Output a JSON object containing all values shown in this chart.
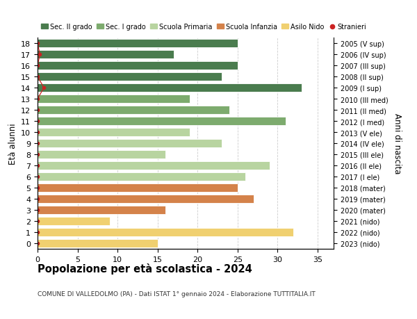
{
  "ages": [
    18,
    17,
    16,
    15,
    14,
    13,
    12,
    11,
    10,
    9,
    8,
    7,
    6,
    5,
    4,
    3,
    2,
    1,
    0
  ],
  "years": [
    "2005 (V sup)",
    "2006 (IV sup)",
    "2007 (III sup)",
    "2008 (II sup)",
    "2009 (I sup)",
    "2010 (III med)",
    "2011 (II med)",
    "2012 (I med)",
    "2013 (V ele)",
    "2014 (IV ele)",
    "2015 (III ele)",
    "2016 (II ele)",
    "2017 (I ele)",
    "2018 (mater)",
    "2019 (mater)",
    "2020 (mater)",
    "2021 (nido)",
    "2022 (nido)",
    "2023 (nido)"
  ],
  "values": [
    25,
    17,
    25,
    23,
    33,
    19,
    24,
    31,
    19,
    23,
    16,
    29,
    26,
    25,
    27,
    16,
    9,
    32,
    15
  ],
  "bar_colors": [
    "#4a7c4e",
    "#4a7c4e",
    "#4a7c4e",
    "#4a7c4e",
    "#4a7c4e",
    "#7dab6e",
    "#7dab6e",
    "#7dab6e",
    "#b8d4a0",
    "#b8d4a0",
    "#b8d4a0",
    "#b8d4a0",
    "#b8d4a0",
    "#d4824a",
    "#d4824a",
    "#d4824a",
    "#f0d070",
    "#f0d070",
    "#f0d070"
  ],
  "legend_labels": [
    "Sec. II grado",
    "Sec. I grado",
    "Scuola Primaria",
    "Scuola Infanzia",
    "Asilo Nido",
    "Stranieri"
  ],
  "legend_colors": [
    "#4a7c4e",
    "#7dab6e",
    "#b8d4a0",
    "#d4824a",
    "#f0d070",
    "#cc2222"
  ],
  "ylabel_left": "Età alunni",
  "ylabel_right": "Anni di nascita",
  "title": "Popolazione per età scolastica - 2024",
  "subtitle": "COMUNE DI VALLEDOLMO (PA) - Dati ISTAT 1° gennaio 2024 - Elaborazione TUTTITALIA.IT",
  "xlim": [
    0,
    37
  ],
  "xticks": [
    0,
    5,
    10,
    15,
    20,
    25,
    30,
    35
  ],
  "background_color": "#ffffff",
  "grid_color": "#cccccc",
  "stranieri_dot_color": "#cc2222",
  "bar_height": 0.75,
  "stranieri_x": [
    0,
    0.3,
    0,
    0,
    0.8,
    0,
    0,
    0,
    0,
    0,
    0,
    0,
    0,
    0,
    0,
    0,
    0,
    0,
    0
  ]
}
